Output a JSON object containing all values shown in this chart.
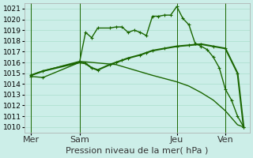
{
  "title": "Pression niveau de la mer( hPa )",
  "bg_color": "#cceee8",
  "grid_color": "#aaddcc",
  "line_color": "#1a6600",
  "line_color2": "#226600",
  "ylim": [
    1009.5,
    1021.5
  ],
  "yticks": [
    1010,
    1011,
    1012,
    1013,
    1014,
    1015,
    1016,
    1017,
    1018,
    1019,
    1020,
    1021
  ],
  "day_labels": [
    "Mer",
    "Sam",
    "Jeu",
    "Ven"
  ],
  "day_positions": [
    0,
    8,
    24,
    32
  ],
  "line1_x": [
    0,
    2,
    8,
    9,
    10,
    11,
    13,
    14,
    15,
    16,
    17,
    18,
    19,
    20,
    21,
    22,
    23,
    24,
    25,
    26,
    27,
    28,
    29,
    30,
    31,
    32,
    33,
    34,
    35
  ],
  "line1_y": [
    1014.7,
    1014.6,
    1016.0,
    1018.8,
    1018.3,
    1019.2,
    1019.2,
    1019.3,
    1019.3,
    1018.8,
    1019.0,
    1018.8,
    1018.5,
    1020.3,
    1020.3,
    1020.4,
    1020.4,
    1021.2,
    1020.1,
    1019.5,
    1017.8,
    1017.5,
    1017.2,
    1016.5,
    1015.5,
    1013.5,
    1012.5,
    1011.0,
    1010.0
  ],
  "line2_x": [
    0,
    2,
    8,
    9,
    10,
    11,
    13,
    14,
    15,
    16,
    18,
    19,
    20,
    22,
    24,
    26,
    28,
    30,
    32,
    34,
    35
  ],
  "line2_y": [
    1014.8,
    1015.2,
    1016.0,
    1015.9,
    1015.5,
    1015.3,
    1015.8,
    1016.0,
    1016.2,
    1016.4,
    1016.7,
    1016.9,
    1017.1,
    1017.3,
    1017.5,
    1017.6,
    1017.7,
    1017.5,
    1017.3,
    1015.0,
    1010.0
  ],
  "line3_x": [
    0,
    2,
    8,
    14,
    20,
    24,
    26,
    28,
    30,
    32,
    34,
    35
  ],
  "line3_y": [
    1014.8,
    1015.2,
    1016.1,
    1015.8,
    1014.8,
    1014.2,
    1013.8,
    1013.2,
    1012.5,
    1011.5,
    1010.2,
    1010.0
  ],
  "xlabel_fontsize": 8,
  "tick_fontsize": 6.5
}
